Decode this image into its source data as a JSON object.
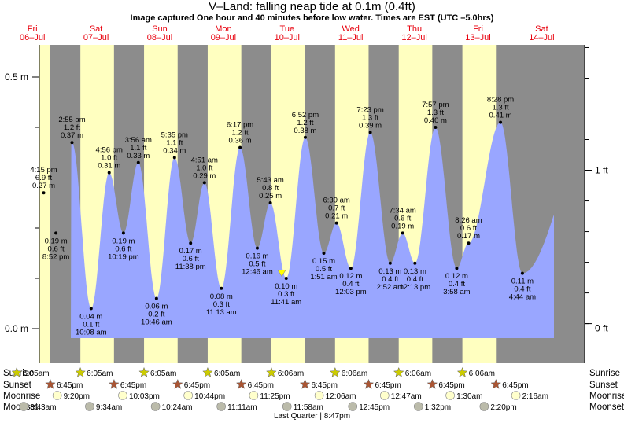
{
  "header": {
    "title": "V–Land: falling  neap tide at 0.1m (0.4ft)",
    "subtitle": "Image captured One hour and 40 minutes before low water. Times are EST (UTC –5.0hrs)"
  },
  "colors": {
    "night": "#8c8c8c",
    "day": "#ffffc0",
    "tide_fill": "#99a6ff",
    "day_label": "#e8000d",
    "sunrise": "#cccc00",
    "sunset": "#aa5533",
    "moonrise": "#ffffcc",
    "moonset": "#bbbbaa"
  },
  "chart_data": {
    "type": "area",
    "title": "V–Land: falling  neap tide at 0.1m (0.4ft)",
    "ylabel_left_ticks": [
      "0.5 m",
      "0.0 m"
    ],
    "ylabel_right_ticks": [
      "1 ft",
      "0 ft"
    ],
    "ylim_m": [
      -0.02,
      0.56
    ],
    "days": [
      {
        "name": "Fri",
        "date": "06–Jul"
      },
      {
        "name": "Sat",
        "date": "07–Jul"
      },
      {
        "name": "Sun",
        "date": "08–Jul"
      },
      {
        "name": "Mon",
        "date": "09–Jul"
      },
      {
        "name": "Tue",
        "date": "10–Jul"
      },
      {
        "name": "Wed",
        "date": "11–Jul"
      },
      {
        "name": "Thu",
        "date": "12–Jul"
      },
      {
        "name": "Fri",
        "date": "13–Jul"
      },
      {
        "name": "Sat",
        "date": "14–Jul"
      }
    ],
    "tides": [
      {
        "day": 0,
        "time": "4:15 pm",
        "hours": 16.25,
        "m": "0.27 m",
        "ft": "0.9 ft",
        "value": 0.27,
        "type": "high"
      },
      {
        "day": 0,
        "time": "8:52 pm",
        "hours": 20.87,
        "m": "0.19 m",
        "ft": "0.6 ft",
        "value": 0.19,
        "type": "low"
      },
      {
        "day": 1,
        "time": "2:55 am",
        "hours": 2.92,
        "m": "0.37 m",
        "ft": "1.2 ft",
        "value": 0.37,
        "type": "high"
      },
      {
        "day": 1,
        "time": "10:08 am",
        "hours": 10.13,
        "m": "0.04 m",
        "ft": "0.1 ft",
        "value": 0.04,
        "type": "low"
      },
      {
        "day": 1,
        "time": "4:56 pm",
        "hours": 16.93,
        "m": "0.31 m",
        "ft": "1.0 ft",
        "value": 0.31,
        "type": "high"
      },
      {
        "day": 1,
        "time": "10:19 pm",
        "hours": 22.32,
        "m": "0.19 m",
        "ft": "0.6 ft",
        "value": 0.19,
        "type": "low"
      },
      {
        "day": 2,
        "time": "3:56 am",
        "hours": 3.93,
        "m": "0.33 m",
        "ft": "1.1 ft",
        "value": 0.33,
        "type": "high"
      },
      {
        "day": 2,
        "time": "10:46 am",
        "hours": 10.77,
        "m": "0.06 m",
        "ft": "0.2 ft",
        "value": 0.06,
        "type": "low"
      },
      {
        "day": 2,
        "time": "5:35 pm",
        "hours": 17.58,
        "m": "0.34 m",
        "ft": "1.1 ft",
        "value": 0.34,
        "type": "high"
      },
      {
        "day": 2,
        "time": "11:38 pm",
        "hours": 23.63,
        "m": "0.17 m",
        "ft": "0.6 ft",
        "value": 0.17,
        "type": "low"
      },
      {
        "day": 3,
        "time": "4:51 am",
        "hours": 4.85,
        "m": "0.29 m",
        "ft": "1.0 ft",
        "value": 0.29,
        "type": "high"
      },
      {
        "day": 3,
        "time": "11:13 am",
        "hours": 11.22,
        "m": "0.08 m",
        "ft": "0.3 ft",
        "value": 0.08,
        "type": "low"
      },
      {
        "day": 3,
        "time": "6:17 pm",
        "hours": 18.28,
        "m": "0.36 m",
        "ft": "1.2 ft",
        "value": 0.36,
        "type": "high"
      },
      {
        "day": 4,
        "time": "12:46 am",
        "hours": 0.77,
        "m": "0.16 m",
        "ft": "0.5 ft",
        "value": 0.16,
        "type": "low"
      },
      {
        "day": 4,
        "time": "5:43 am",
        "hours": 5.72,
        "m": "0.25 m",
        "ft": "0.8 ft",
        "value": 0.25,
        "type": "high"
      },
      {
        "day": 4,
        "time": "11:41 am",
        "hours": 11.68,
        "m": "0.10 m",
        "ft": "0.3 ft",
        "value": 0.1,
        "type": "low"
      },
      {
        "day": 4,
        "time": "6:52 pm",
        "hours": 18.87,
        "m": "0.38 m",
        "ft": "1.2 ft",
        "value": 0.38,
        "type": "high"
      },
      {
        "day": 5,
        "time": "1:51 am",
        "hours": 1.85,
        "m": "0.15 m",
        "ft": "0.5 ft",
        "value": 0.15,
        "type": "low"
      },
      {
        "day": 5,
        "time": "6:39 am",
        "hours": 6.65,
        "m": "0.21 m",
        "ft": "0.7 ft",
        "value": 0.21,
        "type": "high"
      },
      {
        "day": 5,
        "time": "12:03 pm",
        "hours": 12.05,
        "m": "0.12 m",
        "ft": "0.4 ft",
        "value": 0.12,
        "type": "low"
      },
      {
        "day": 5,
        "time": "7:23 pm",
        "hours": 19.38,
        "m": "0.39 m",
        "ft": "1.3 ft",
        "value": 0.39,
        "type": "high"
      },
      {
        "day": 6,
        "time": "2:52 am",
        "hours": 2.87,
        "m": "0.13 m",
        "ft": "0.4 ft",
        "value": 0.13,
        "type": "low"
      },
      {
        "day": 6,
        "time": "7:34 am",
        "hours": 7.57,
        "m": "0.19 m",
        "ft": "0.6 ft",
        "value": 0.19,
        "type": "high"
      },
      {
        "day": 6,
        "time": "12:13 pm",
        "hours": 12.22,
        "m": "0.13 m",
        "ft": "0.4 ft",
        "value": 0.13,
        "type": "low"
      },
      {
        "day": 6,
        "time": "7:57 pm",
        "hours": 19.95,
        "m": "0.40 m",
        "ft": "1.3 ft",
        "value": 0.4,
        "type": "high"
      },
      {
        "day": 7,
        "time": "3:58 am",
        "hours": 3.97,
        "m": "0.12 m",
        "ft": "0.4 ft",
        "value": 0.12,
        "type": "low"
      },
      {
        "day": 7,
        "time": "8:26 am",
        "hours": 8.43,
        "m": "0.17 m",
        "ft": "0.6 ft",
        "value": 0.17,
        "type": "high"
      },
      {
        "day": 7,
        "time": "8:28 pm",
        "hours": 20.47,
        "m": "0.41 m",
        "ft": "1.3 ft",
        "value": 0.41,
        "type": "high"
      },
      {
        "day": 8,
        "time": "4:44 am",
        "hours": 4.73,
        "m": "0.11 m",
        "ft": "0.4 ft",
        "value": 0.11,
        "type": "low"
      }
    ],
    "current": {
      "day": 4,
      "hours": 10.0,
      "value": 0.11
    }
  },
  "almanac": {
    "row_labels": {
      "sunrise": "Sunrise",
      "sunset": "Sunset",
      "moonrise": "Moonrise",
      "moonset": "Moonset"
    },
    "sunrise": [
      {
        "day": 0,
        "hours": 6.08,
        "time": "6:05am"
      },
      {
        "day": 1,
        "hours": 6.08,
        "time": "6:05am"
      },
      {
        "day": 2,
        "hours": 6.08,
        "time": "6:05am"
      },
      {
        "day": 3,
        "hours": 6.08,
        "time": "6:05am"
      },
      {
        "day": 4,
        "hours": 6.1,
        "time": "6:06am"
      },
      {
        "day": 5,
        "hours": 6.1,
        "time": "6:06am"
      },
      {
        "day": 6,
        "hours": 6.1,
        "time": "6:06am"
      },
      {
        "day": 7,
        "hours": 6.1,
        "time": "6:06am"
      }
    ],
    "sunset": [
      {
        "day": 0,
        "hours": 18.75,
        "time": "6:45pm"
      },
      {
        "day": 1,
        "hours": 18.75,
        "time": "6:45pm"
      },
      {
        "day": 2,
        "hours": 18.75,
        "time": "6:45pm"
      },
      {
        "day": 3,
        "hours": 18.75,
        "time": "6:45pm"
      },
      {
        "day": 4,
        "hours": 18.75,
        "time": "6:45pm"
      },
      {
        "day": 5,
        "hours": 18.75,
        "time": "6:45pm"
      },
      {
        "day": 6,
        "hours": 18.75,
        "time": "6:45pm"
      },
      {
        "day": 7,
        "hours": 18.75,
        "time": "6:45pm"
      }
    ],
    "moonrise": [
      {
        "day": 0,
        "hours": 21.33,
        "time": "9:20pm"
      },
      {
        "day": 1,
        "hours": 22.05,
        "time": "10:03pm"
      },
      {
        "day": 2,
        "hours": 22.73,
        "time": "10:44pm"
      },
      {
        "day": 3,
        "hours": 23.42,
        "time": "11:25pm"
      },
      {
        "day": 5,
        "hours": 0.1,
        "time": "12:06am"
      },
      {
        "day": 6,
        "hours": 0.78,
        "time": "12:47am"
      },
      {
        "day": 7,
        "hours": 1.5,
        "time": "1:30am"
      },
      {
        "day": 8,
        "hours": 2.27,
        "time": "2:16am"
      }
    ],
    "moonset": [
      {
        "day": 0,
        "hours": 8.72,
        "time": "8:43am"
      },
      {
        "day": 1,
        "hours": 9.57,
        "time": "9:34am"
      },
      {
        "day": 2,
        "hours": 10.4,
        "time": "10:24am"
      },
      {
        "day": 3,
        "hours": 11.18,
        "time": "11:11am"
      },
      {
        "day": 4,
        "hours": 11.97,
        "time": "11:58am"
      },
      {
        "day": 5,
        "hours": 12.75,
        "time": "12:45pm"
      },
      {
        "day": 6,
        "hours": 13.53,
        "time": "1:32pm"
      },
      {
        "day": 7,
        "hours": 14.33,
        "time": "2:20pm"
      }
    ],
    "note": "Last Quarter | 8:47pm"
  }
}
